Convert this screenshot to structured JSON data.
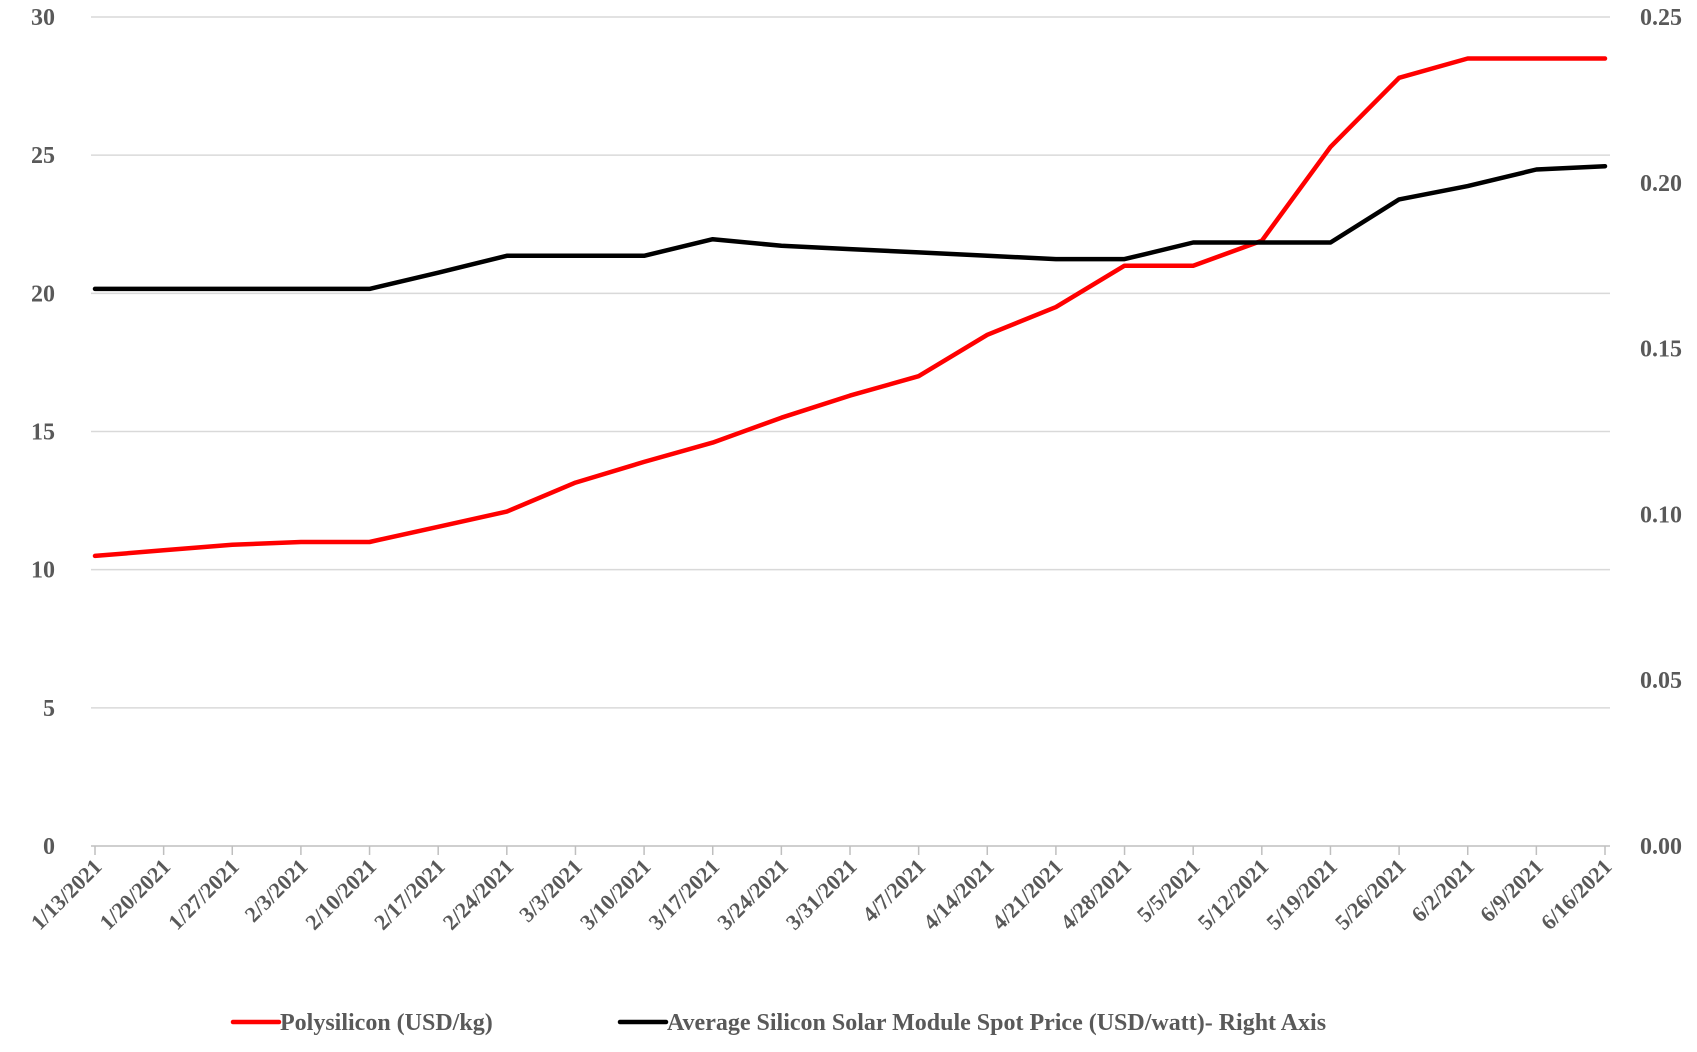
{
  "chart_data": {
    "type": "line",
    "title": "",
    "xlabel": "",
    "ylabel": "",
    "ylabel_right": "",
    "categories": [
      "1/13/2021",
      "1/20/2021",
      "1/27/2021",
      "2/3/2021",
      "2/10/2021",
      "2/17/2021",
      "2/24/2021",
      "3/3/2021",
      "3/10/2021",
      "3/17/2021",
      "3/24/2021",
      "3/31/2021",
      "4/7/2021",
      "4/14/2021",
      "4/21/2021",
      "4/28/2021",
      "5/5/2021",
      "5/12/2021",
      "5/19/2021",
      "5/26/2021",
      "6/2/2021",
      "6/9/2021",
      "6/16/2021"
    ],
    "y_left": {
      "ylim": [
        0,
        30
      ],
      "ticks": [
        0,
        5,
        10,
        15,
        20,
        25,
        30
      ],
      "tick_labels": [
        "0",
        "5",
        "10",
        "15",
        "20",
        "25",
        "30"
      ]
    },
    "y_right": {
      "ylim": [
        0,
        0.25
      ],
      "ticks": [
        0,
        0.05,
        0.1,
        0.15,
        0.2,
        0.25
      ],
      "tick_labels": [
        "0.00",
        "0.05",
        "0.10",
        "0.15",
        "0.20",
        "0.25"
      ]
    },
    "series": [
      {
        "name": "Polysilicon (USD/kg)",
        "axis": "left",
        "color": "#ff0000",
        "values": [
          10.5,
          10.7,
          10.9,
          11.0,
          11.0,
          11.55,
          12.1,
          13.15,
          13.9,
          14.6,
          15.5,
          16.3,
          17.0,
          18.5,
          19.5,
          21.0,
          21.0,
          21.9,
          25.3,
          27.8,
          28.5,
          28.5,
          28.5
        ]
      },
      {
        "name": "Average Silicon Solar Module Spot Price (USD/watt)- Right Axis",
        "axis": "right",
        "color": "#000000",
        "values": [
          0.168,
          0.168,
          0.168,
          0.168,
          0.168,
          0.1729,
          0.178,
          0.178,
          0.178,
          0.183,
          0.181,
          0.18,
          0.179,
          0.178,
          0.177,
          0.177,
          0.182,
          0.182,
          0.182,
          0.195,
          0.199,
          0.204,
          0.205
        ]
      }
    ],
    "grid": true,
    "legend_position": "bottom"
  }
}
